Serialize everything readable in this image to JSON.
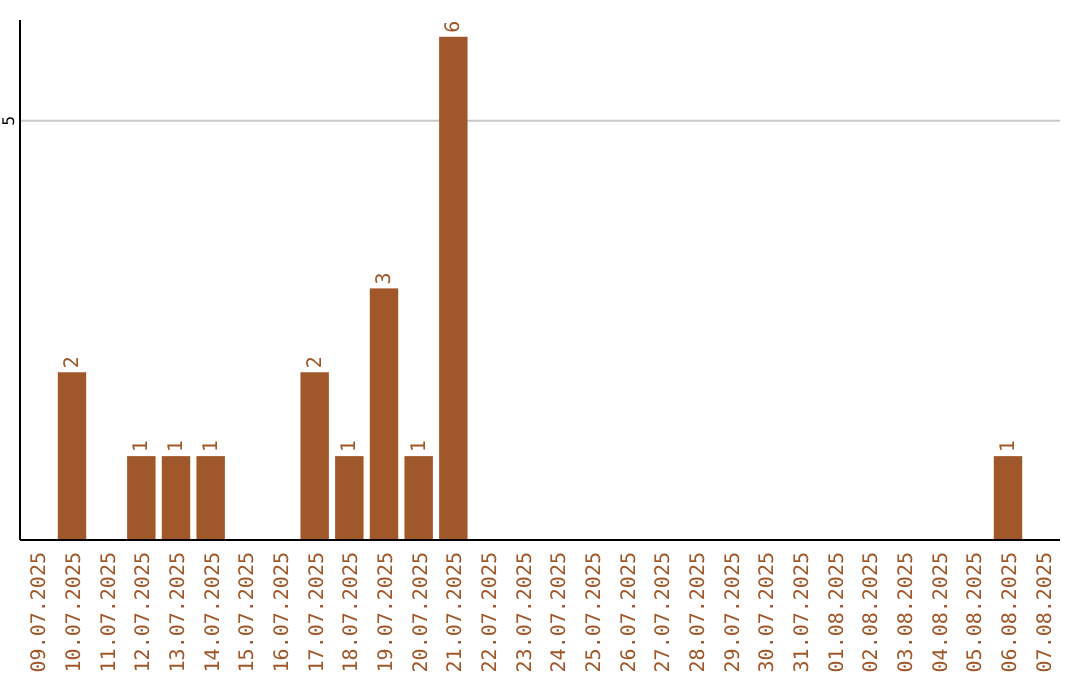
{
  "chart_data": {
    "type": "bar",
    "categories": [
      "09.07.2025",
      "10.07.2025",
      "11.07.2025",
      "12.07.2025",
      "13.07.2025",
      "14.07.2025",
      "15.07.2025",
      "16.07.2025",
      "17.07.2025",
      "18.07.2025",
      "19.07.2025",
      "20.07.2025",
      "21.07.2025",
      "22.07.2025",
      "23.07.2025",
      "24.07.2025",
      "25.07.2025",
      "26.07.2025",
      "27.07.2025",
      "28.07.2025",
      "29.07.2025",
      "30.07.2025",
      "31.07.2025",
      "01.08.2025",
      "02.08.2025",
      "03.08.2025",
      "04.08.2025",
      "05.08.2025",
      "06.08.2025",
      "07.08.2025"
    ],
    "values": [
      0,
      2,
      0,
      1,
      1,
      1,
      0,
      0,
      2,
      1,
      3,
      1,
      6,
      0,
      0,
      0,
      0,
      0,
      0,
      0,
      0,
      0,
      0,
      0,
      0,
      0,
      0,
      0,
      1,
      0
    ],
    "value_labels": [
      null,
      "2",
      null,
      "1",
      "1",
      "1",
      null,
      null,
      "2",
      "1",
      "3",
      "1",
      "6",
      null,
      null,
      null,
      null,
      null,
      null,
      null,
      null,
      null,
      null,
      null,
      null,
      null,
      null,
      null,
      "1",
      null
    ],
    "color": "#a0572a",
    "ylim": [
      0,
      6.2
    ],
    "yticks": [
      5
    ],
    "grid": "y"
  }
}
